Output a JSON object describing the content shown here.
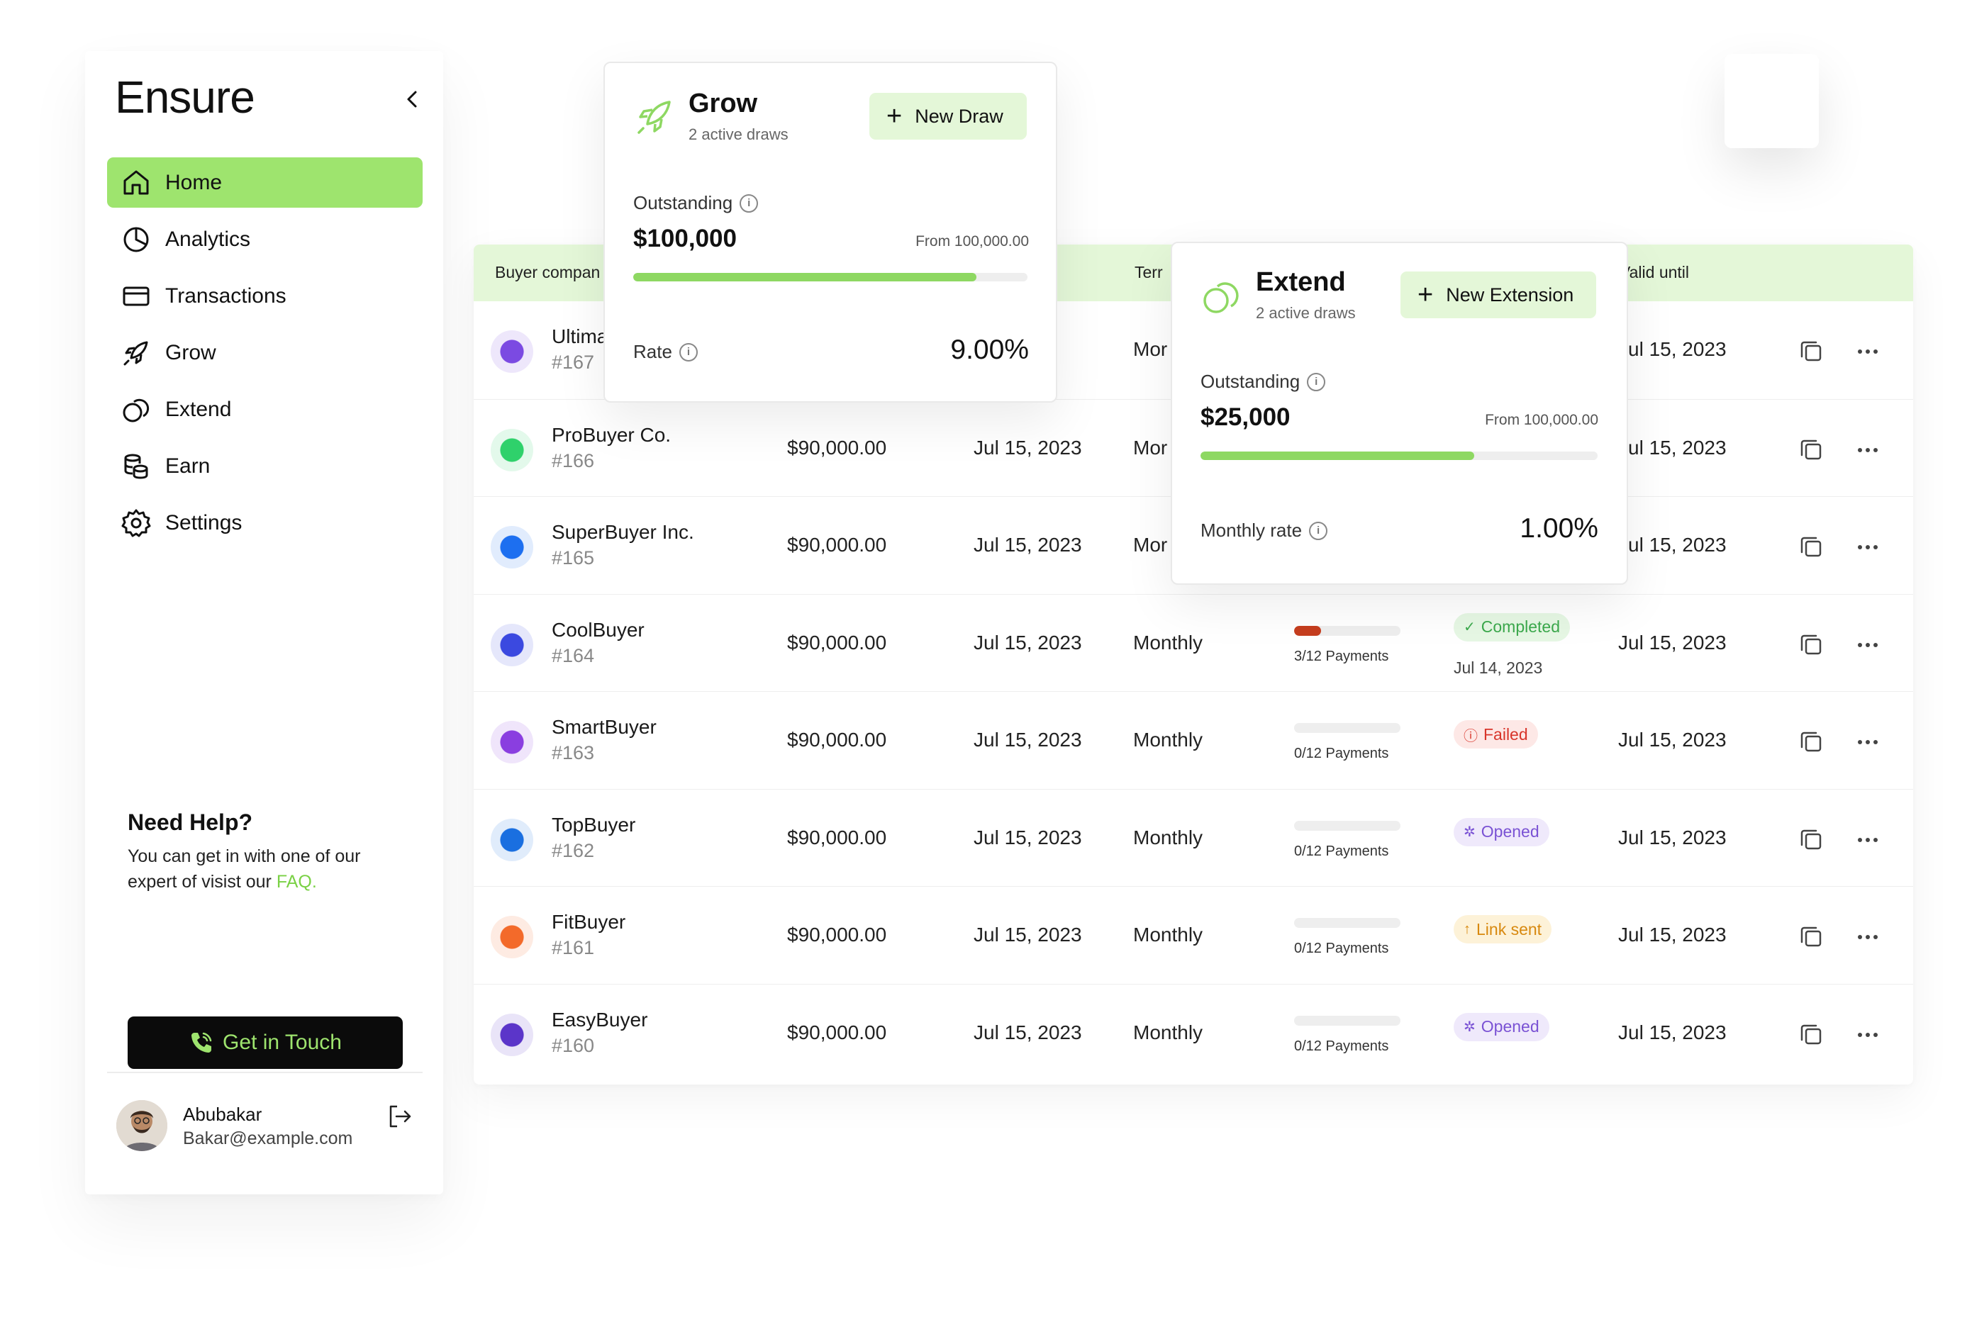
{
  "app": {
    "logo": "Ensure",
    "nav": [
      {
        "label": "Home",
        "icon": "home-icon",
        "active": true
      },
      {
        "label": "Analytics",
        "icon": "pie-chart-icon"
      },
      {
        "label": "Transactions",
        "icon": "credit-card-icon"
      },
      {
        "label": "Grow",
        "icon": "rocket-icon"
      },
      {
        "label": "Extend",
        "icon": "extend-icon"
      },
      {
        "label": "Earn",
        "icon": "coins-icon"
      },
      {
        "label": "Settings",
        "icon": "gear-icon"
      }
    ],
    "help": {
      "title": "Need Help?",
      "text": "You can get in with one of our expert of visist our",
      "faq": "FAQ.",
      "cta": "Get in Touch"
    },
    "user": {
      "name": "Abubakar",
      "email": "Bakar@example.com"
    }
  },
  "table": {
    "headers": {
      "buyer": "Buyer compan",
      "term": "Terr",
      "valid": "Valid until"
    },
    "rows": [
      {
        "name": "Ultima",
        "id": "#167",
        "amount": "",
        "date": "023",
        "term": "Mor",
        "valid": "Jul 15, 2023",
        "icon_color": "#7b4ae2"
      },
      {
        "name": "ProBuyer Co.",
        "id": "#166",
        "amount": "$90,000.00",
        "date": "Jul 15, 2023",
        "term": "Mor",
        "valid": "Jul 15, 2023",
        "icon_color": "#2fd16b"
      },
      {
        "name": "SuperBuyer Inc.",
        "id": "#165",
        "amount": "$90,000.00",
        "date": "Jul 15, 2023",
        "term": "Mor",
        "valid": "Jul 15, 2023",
        "icon_color": "#1d6ff0"
      },
      {
        "name": "CoolBuyer",
        "id": "#164",
        "amount": "$90,000.00",
        "date": "Jul 15, 2023",
        "term": "Monthly",
        "payments": "3/12 Payments",
        "progress": 0.25,
        "status": "Completed",
        "status_kind": "completed",
        "status_date": "Jul 14, 2023",
        "valid": "Jul 15, 2023",
        "icon_color": "#3b49e0"
      },
      {
        "name": "SmartBuyer",
        "id": "#163",
        "amount": "$90,000.00",
        "date": "Jul 15, 2023",
        "term": "Monthly",
        "payments": "0/12 Payments",
        "progress": 0,
        "status": "Failed",
        "status_kind": "failed",
        "valid": "Jul 15, 2023",
        "icon_color": "#8a3ee0"
      },
      {
        "name": "TopBuyer",
        "id": "#162",
        "amount": "$90,000.00",
        "date": "Jul 15, 2023",
        "term": "Monthly",
        "payments": "0/12 Payments",
        "progress": 0,
        "status": "Opened",
        "status_kind": "opened",
        "valid": "Jul 15, 2023",
        "icon_color": "#1a6fe0"
      },
      {
        "name": "FitBuyer",
        "id": "#161",
        "amount": "$90,000.00",
        "date": "Jul 15, 2023",
        "term": "Monthly",
        "payments": "0/12 Payments",
        "progress": 0,
        "status": "Link sent",
        "status_kind": "link",
        "valid": "Jul 15, 2023",
        "icon_color": "#f36a2a"
      },
      {
        "name": "EasyBuyer",
        "id": "#160",
        "amount": "$90,000.00",
        "date": "Jul 15, 2023",
        "term": "Monthly",
        "payments": "0/12 Payments",
        "progress": 0,
        "status": "Opened",
        "status_kind": "opened",
        "valid": "Jul 15, 2023",
        "icon_color": "#5b35c9"
      }
    ]
  },
  "grow": {
    "title": "Grow",
    "subtitle": "2 active draws",
    "button": "New Draw",
    "outstanding_label": "Outstanding",
    "outstanding": "$100,000",
    "from": "From 100,000.00",
    "progress": 0.87,
    "rate_label": "Rate",
    "rate": "9.00%"
  },
  "extend": {
    "title": "Extend",
    "subtitle": "2 active draws",
    "button": "New Extension",
    "outstanding_label": "Outstanding",
    "outstanding": "$25,000",
    "from": "From 100,000.00",
    "progress": 0.69,
    "rate_label": "Monthly rate",
    "rate": "1.00%"
  },
  "colors": {
    "accent": "#9ee46e",
    "accent_light": "#e4f7d8",
    "dark": "#0b0b0b"
  }
}
